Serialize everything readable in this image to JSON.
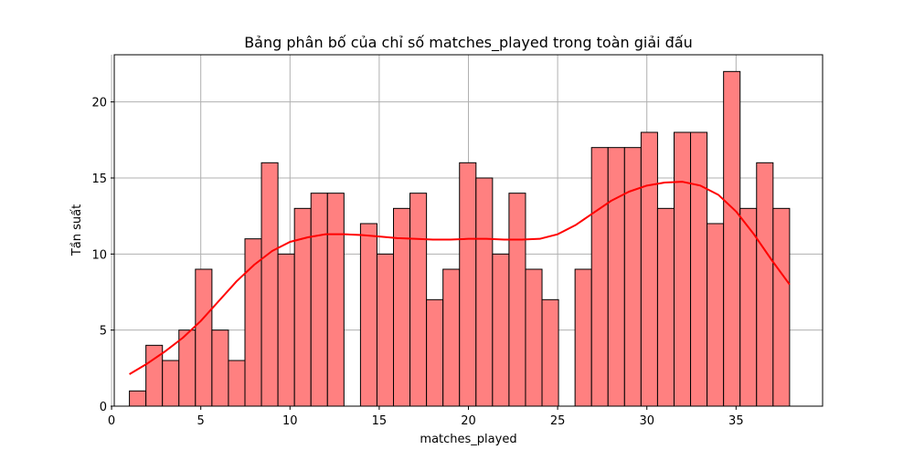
{
  "chart_data": {
    "type": "bar",
    "title": "Bảng phân bố của chỉ số matches_played trong toàn giải đấu",
    "xlabel": "matches_played",
    "ylabel": "Tần suất",
    "xlim": [
      0.15,
      39.85
    ],
    "ylim": [
      0,
      23.1
    ],
    "grid": true,
    "bar_color": "#ff8080",
    "bar_edge_color": "#000000",
    "kde_color": "#ff0000",
    "bin_edges_range": [
      1,
      38
    ],
    "x_ticks": [
      {
        "value": 0,
        "label": "0"
      },
      {
        "value": 5,
        "label": "5"
      },
      {
        "value": 10,
        "label": "10"
      },
      {
        "value": 15,
        "label": "15"
      },
      {
        "value": 20,
        "label": "20"
      },
      {
        "value": 25,
        "label": "25"
      },
      {
        "value": 30,
        "label": "30"
      },
      {
        "value": 35,
        "label": "35"
      }
    ],
    "y_ticks": [
      {
        "value": 0,
        "label": "0"
      },
      {
        "value": 5,
        "label": "5"
      },
      {
        "value": 10,
        "label": "10"
      },
      {
        "value": 15,
        "label": "15"
      },
      {
        "value": 20,
        "label": "20"
      }
    ],
    "counts": [
      1,
      4,
      3,
      5,
      9,
      5,
      3,
      11,
      16,
      10,
      13,
      14,
      14,
      0,
      12,
      10,
      13,
      14,
      7,
      9,
      16,
      15,
      10,
      14,
      9,
      7,
      0,
      9,
      17,
      17,
      17,
      18,
      13,
      18,
      18,
      12,
      22,
      13,
      16,
      13
    ],
    "kde": {
      "x": [
        1,
        2,
        3,
        4,
        5,
        6,
        7,
        8,
        9,
        10,
        11,
        12,
        13,
        14,
        15,
        16,
        17,
        18,
        19,
        20,
        21,
        22,
        23,
        24,
        25,
        26,
        27,
        28,
        29,
        30,
        31,
        32,
        33,
        34,
        35,
        36,
        37,
        38
      ],
      "y": [
        2.1,
        2.8,
        3.6,
        4.5,
        5.6,
        6.9,
        8.2,
        9.3,
        10.2,
        10.8,
        11.1,
        11.3,
        11.3,
        11.25,
        11.15,
        11.05,
        11.0,
        10.95,
        10.95,
        11.0,
        11.0,
        10.95,
        10.95,
        11.0,
        11.3,
        11.9,
        12.7,
        13.5,
        14.1,
        14.5,
        14.7,
        14.75,
        14.5,
        13.9,
        12.8,
        11.3,
        9.6,
        8.0
      ]
    }
  }
}
